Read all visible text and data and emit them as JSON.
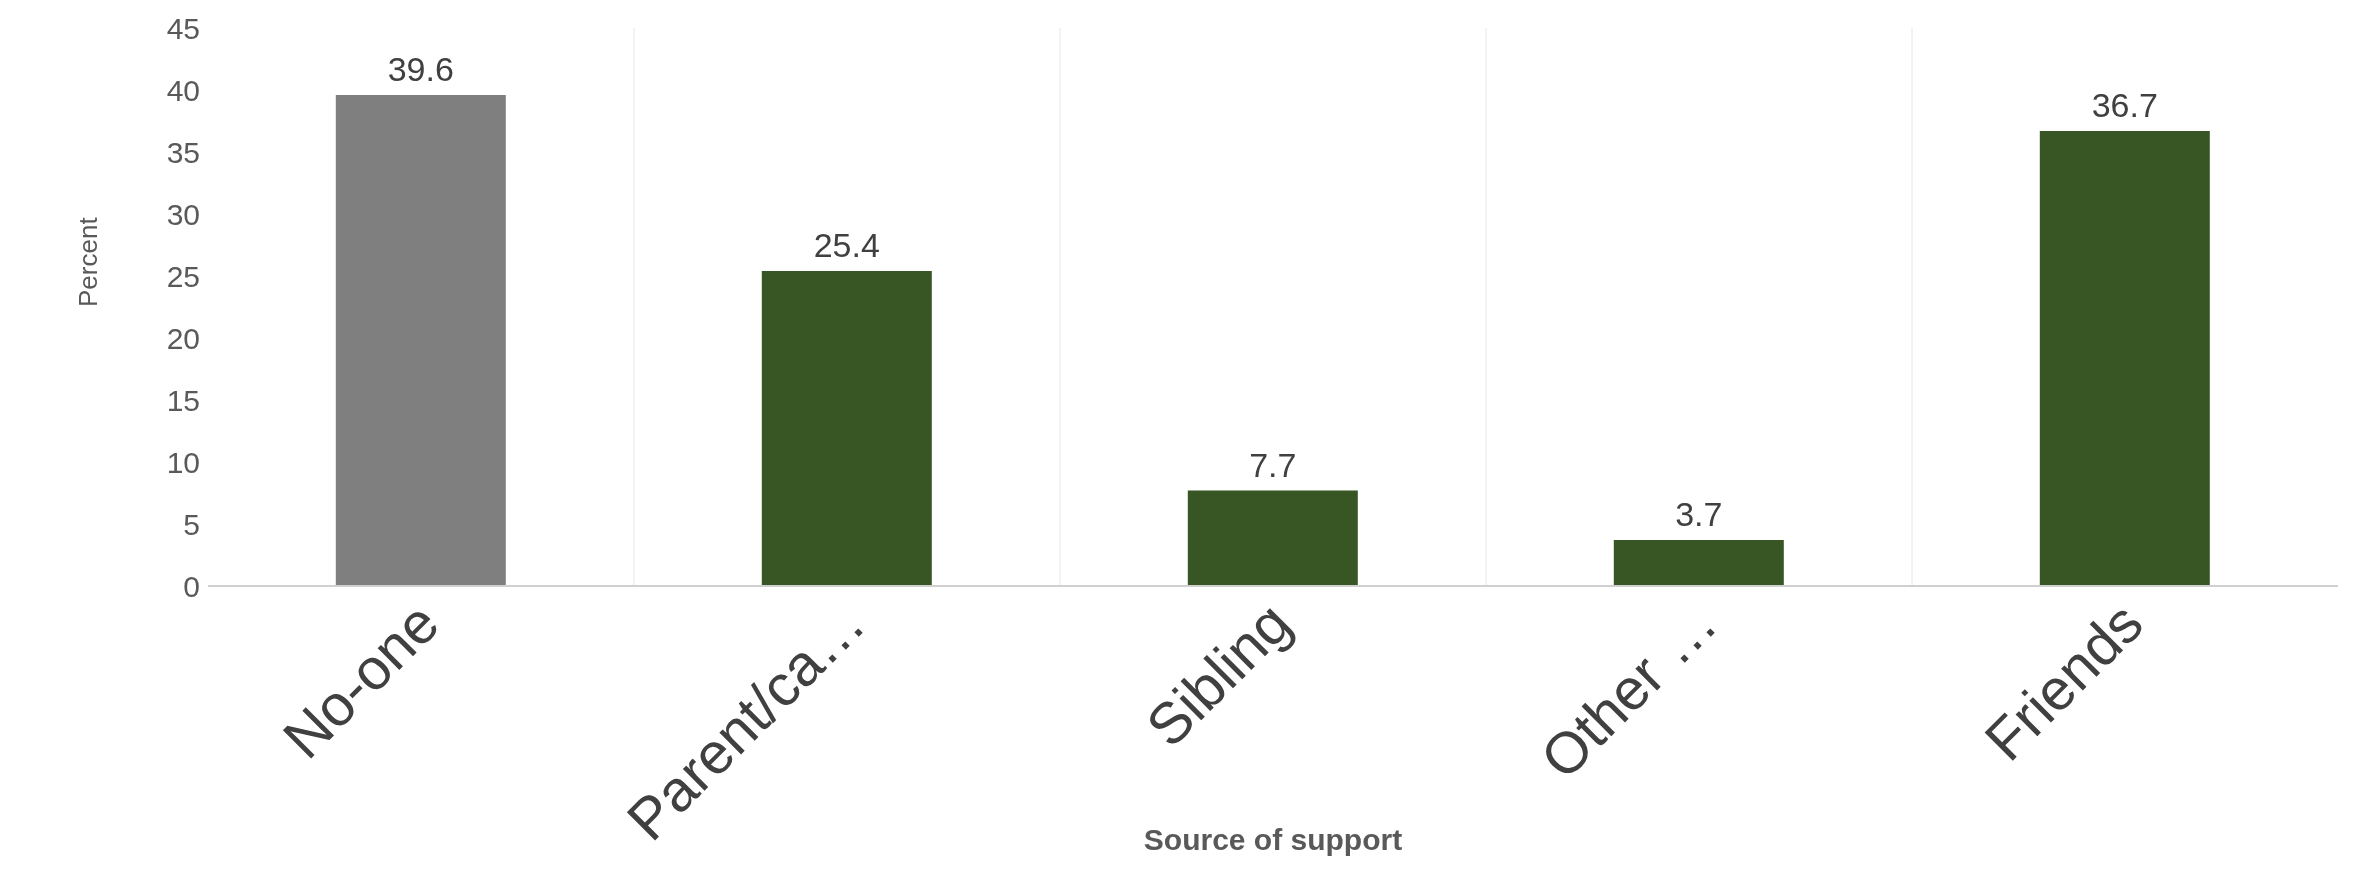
{
  "chart_data": {
    "type": "bar",
    "xlabel": "Source of support",
    "ylabel": "Percent",
    "categories": [
      "No-one",
      "Parent/ca…",
      "Sibling",
      "Other …",
      "Friends"
    ],
    "values": [
      39.6,
      25.4,
      7.7,
      3.7,
      36.7
    ],
    "colors": [
      "#7f7f7f",
      "#375623",
      "#375623",
      "#375623",
      "#375623"
    ],
    "ylim": [
      0,
      45
    ],
    "yticks": [
      0,
      5,
      10,
      15,
      20,
      25,
      30,
      35,
      40,
      45
    ],
    "grid": "x",
    "data_labels": true
  }
}
